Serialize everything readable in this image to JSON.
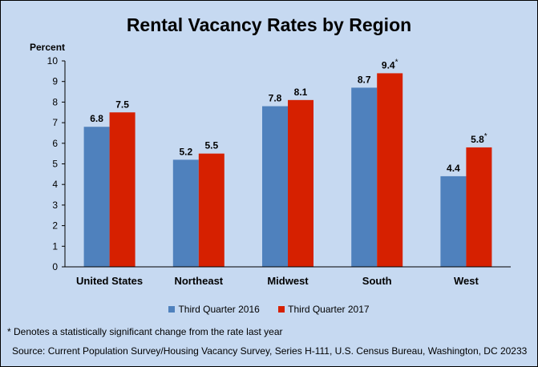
{
  "chart_data": {
    "type": "bar",
    "title": "Rental Vacancy Rates by Region",
    "ylabel": "Percent",
    "xlabel": "",
    "ylim": [
      0,
      10
    ],
    "yticks": [
      0,
      1,
      2,
      3,
      4,
      5,
      6,
      7,
      8,
      9,
      10
    ],
    "categories": [
      "United States",
      "Northeast",
      "Midwest",
      "South",
      "West"
    ],
    "series": [
      {
        "name": "Third Quarter 2016",
        "color": "#4f81bd",
        "values": [
          6.8,
          5.2,
          7.8,
          8.7,
          4.4
        ],
        "labels": [
          "6.8",
          "5.2",
          "7.8",
          "8.7",
          "4.4"
        ],
        "marks": [
          "",
          "",
          "",
          "",
          ""
        ]
      },
      {
        "name": "Third Quarter 2017",
        "color": "#d62000",
        "values": [
          7.5,
          5.5,
          8.1,
          9.4,
          5.8
        ],
        "labels": [
          "7.5",
          "5.5",
          "8.1",
          "9.4",
          "5.8"
        ],
        "marks": [
          "",
          "",
          "",
          "*",
          "*"
        ]
      }
    ],
    "legend": "bottom",
    "grid": false
  },
  "footnote": "* Denotes a statistically significant change from the rate last year",
  "source": "Source: Current Population Survey/Housing Vacancy Survey, Series H-111, U.S. Census Bureau, Washington, DC 20233"
}
